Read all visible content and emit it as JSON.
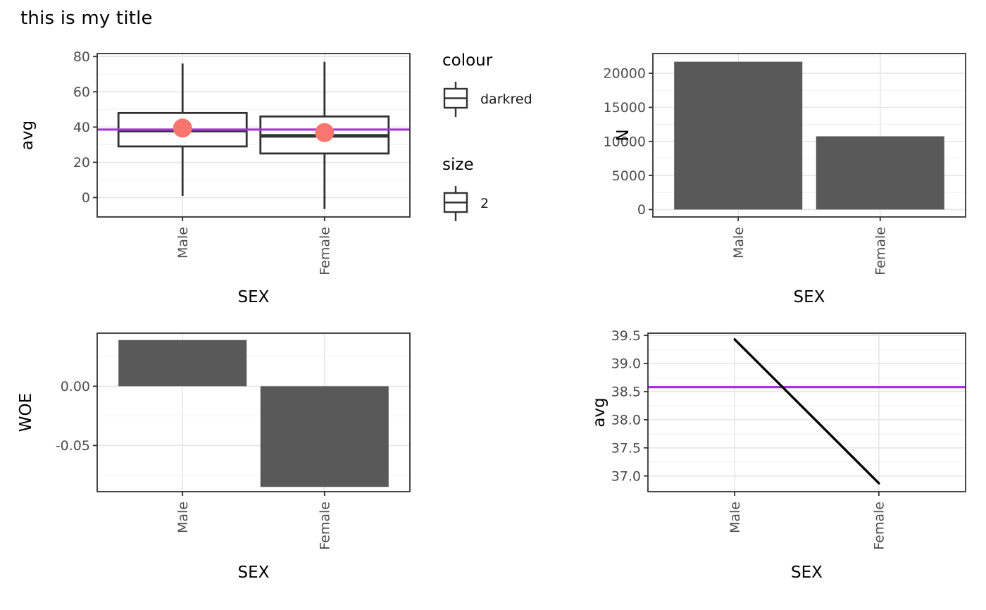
{
  "title": "this is my title",
  "colors": {
    "bar_fill": "#595959",
    "box_stroke": "#333333",
    "mean_point": "#F8766D",
    "hline": "#A435D8",
    "line": "#000000",
    "tick_text": "#4d4d4d",
    "axis_title": "#000000",
    "panel_border": "#333333",
    "grid_major": "#e6e6e6",
    "grid_minor": "#f2f2f2"
  },
  "legend": {
    "colour_title": "colour",
    "colour_label": "darkred",
    "size_title": "size",
    "size_label": "2"
  },
  "chart_data": [
    {
      "id": "boxplot_avg",
      "type": "boxplot",
      "xlabel": "SEX",
      "ylabel": "avg",
      "categories": [
        "Male",
        "Female"
      ],
      "stats": [
        {
          "category": "Male",
          "min": 1,
          "q1": 29,
          "median": 38,
          "q3": 48,
          "max": 76,
          "mean": 39.43
        },
        {
          "category": "Female",
          "min": -6.5,
          "q1": 25,
          "median": 35,
          "q3": 46,
          "max": 77,
          "mean": 36.87
        }
      ],
      "hline": 38.58,
      "ylim": [
        -11,
        81.7
      ],
      "yticks": [
        80,
        60,
        40,
        20,
        0
      ],
      "ytick_labels": [
        "80",
        "60",
        "40",
        "20",
        "0"
      ],
      "yticks_minor": [
        70,
        50,
        30,
        10,
        -10
      ],
      "grid": true,
      "legend_position": "right"
    },
    {
      "id": "bar_N",
      "type": "bar",
      "xlabel": "SEX",
      "ylabel": "N",
      "categories": [
        "Male",
        "Female"
      ],
      "values": [
        21700,
        10750
      ],
      "ylim": [
        -1090,
        22900
      ],
      "yticks": [
        20000,
        15000,
        10000,
        5000,
        0
      ],
      "ytick_labels": [
        "20000",
        "15000",
        "10000",
        "5000",
        "0"
      ],
      "yticks_minor": [
        22500,
        17500,
        12500,
        7500,
        2500
      ],
      "grid": true
    },
    {
      "id": "bar_WOE",
      "type": "bar",
      "xlabel": "SEX",
      "ylabel": "WOE",
      "categories": [
        "Male",
        "Female"
      ],
      "values": [
        0.039,
        -0.085
      ],
      "ylim": [
        -0.089,
        0.0448
      ],
      "yticks": [
        0.0,
        -0.05
      ],
      "ytick_labels": [
        "0.00",
        "-0.05"
      ],
      "yticks_minor": [
        0.025,
        -0.025,
        -0.075
      ],
      "grid": true
    },
    {
      "id": "line_avg",
      "type": "line",
      "xlabel": "SEX",
      "ylabel": "avg",
      "categories": [
        "Male",
        "Female"
      ],
      "values": [
        39.43,
        36.87
      ],
      "hline": 38.58,
      "ylim": [
        36.72,
        39.54
      ],
      "yticks": [
        39.5,
        39.0,
        38.5,
        38.0,
        37.5,
        37.0
      ],
      "ytick_labels": [
        "39.5",
        "39.0",
        "38.5",
        "38.0",
        "37.5",
        "37.0"
      ],
      "yticks_minor": [
        39.25,
        38.75,
        38.25,
        37.75,
        37.25,
        36.75
      ],
      "grid": true
    }
  ]
}
